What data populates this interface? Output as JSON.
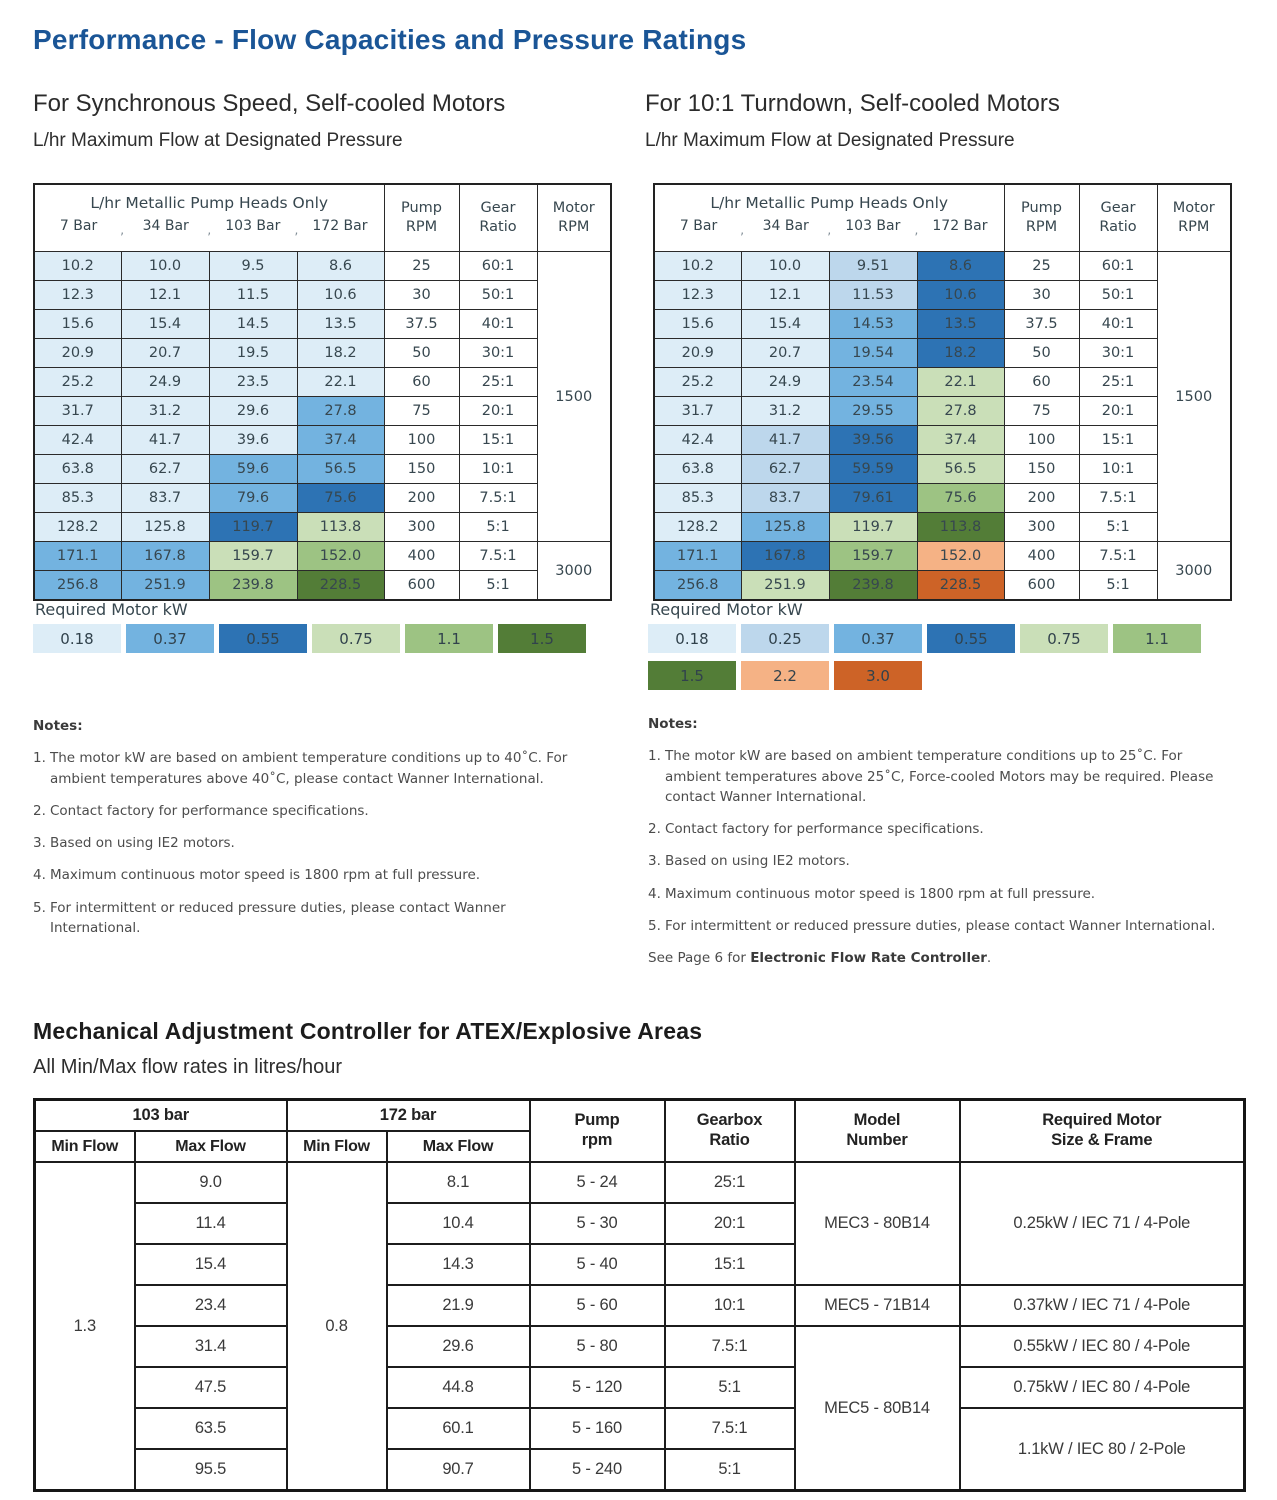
{
  "page": {
    "title": "Performance - Flow Capacities and Pressure Ratings"
  },
  "colors": {
    "title_blue": "#1a5596",
    "kw_018": "#ddedf7",
    "kw_025": "#bdd7ec",
    "kw_037": "#73b3e0",
    "kw_055": "#2d73b4",
    "kw_075": "#cadfb8",
    "kw_110": "#9dc383",
    "kw_150": "#537d37",
    "kw_220": "#f5b285",
    "kw_300": "#cd6327"
  },
  "sync_section": {
    "heading": "For Synchronous Speed, Self-cooled Motors",
    "subheading": "L/hr Maximum Flow at Designated Pressure",
    "table": {
      "group_header": "L/hr Metallic Pump Heads Only",
      "bar_labels": [
        "7 Bar",
        "34 Bar",
        "103 Bar",
        "172 Bar"
      ],
      "pump_header": [
        "Pump",
        "RPM"
      ],
      "gear_header": [
        "Gear",
        "Ratio"
      ],
      "motor_header": [
        "Motor",
        "RPM"
      ],
      "motor_rpm": [
        [
          "1500",
          10
        ],
        [
          "3000",
          2
        ]
      ],
      "rows": [
        {
          "flows": [
            [
              "10.2",
              "018"
            ],
            [
              "10.0",
              "018"
            ],
            [
              "9.5",
              "018"
            ],
            [
              "8.6",
              "018"
            ]
          ],
          "rpm": "25",
          "ratio": "60:1"
        },
        {
          "flows": [
            [
              "12.3",
              "018"
            ],
            [
              "12.1",
              "018"
            ],
            [
              "11.5",
              "018"
            ],
            [
              "10.6",
              "018"
            ]
          ],
          "rpm": "30",
          "ratio": "50:1"
        },
        {
          "flows": [
            [
              "15.6",
              "018"
            ],
            [
              "15.4",
              "018"
            ],
            [
              "14.5",
              "018"
            ],
            [
              "13.5",
              "018"
            ]
          ],
          "rpm": "37.5",
          "ratio": "40:1"
        },
        {
          "flows": [
            [
              "20.9",
              "018"
            ],
            [
              "20.7",
              "018"
            ],
            [
              "19.5",
              "018"
            ],
            [
              "18.2",
              "018"
            ]
          ],
          "rpm": "50",
          "ratio": "30:1"
        },
        {
          "flows": [
            [
              "25.2",
              "018"
            ],
            [
              "24.9",
              "018"
            ],
            [
              "23.5",
              "018"
            ],
            [
              "22.1",
              "018"
            ]
          ],
          "rpm": "60",
          "ratio": "25:1"
        },
        {
          "flows": [
            [
              "31.7",
              "018"
            ],
            [
              "31.2",
              "018"
            ],
            [
              "29.6",
              "018"
            ],
            [
              "27.8",
              "037"
            ]
          ],
          "rpm": "75",
          "ratio": "20:1"
        },
        {
          "flows": [
            [
              "42.4",
              "018"
            ],
            [
              "41.7",
              "018"
            ],
            [
              "39.6",
              "018"
            ],
            [
              "37.4",
              "037"
            ]
          ],
          "rpm": "100",
          "ratio": "15:1"
        },
        {
          "flows": [
            [
              "63.8",
              "018"
            ],
            [
              "62.7",
              "018"
            ],
            [
              "59.6",
              "037"
            ],
            [
              "56.5",
              "037"
            ]
          ],
          "rpm": "150",
          "ratio": "10:1"
        },
        {
          "flows": [
            [
              "85.3",
              "018"
            ],
            [
              "83.7",
              "018"
            ],
            [
              "79.6",
              "037"
            ],
            [
              "75.6",
              "055"
            ]
          ],
          "rpm": "200",
          "ratio": "7.5:1"
        },
        {
          "flows": [
            [
              "128.2",
              "018"
            ],
            [
              "125.8",
              "018"
            ],
            [
              "119.7",
              "055"
            ],
            [
              "113.8",
              "075"
            ]
          ],
          "rpm": "300",
          "ratio": "5:1"
        },
        {
          "flows": [
            [
              "171.1",
              "037"
            ],
            [
              "167.8",
              "037"
            ],
            [
              "159.7",
              "075"
            ],
            [
              "152.0",
              "110"
            ]
          ],
          "rpm": "400",
          "ratio": "7.5:1"
        },
        {
          "flows": [
            [
              "256.8",
              "037"
            ],
            [
              "251.9",
              "037"
            ],
            [
              "239.8",
              "110"
            ],
            [
              "228.5",
              "150"
            ]
          ],
          "rpm": "600",
          "ratio": "5:1"
        }
      ]
    },
    "legend": {
      "title": "Required Motor kW",
      "items": [
        [
          "0.18",
          "018"
        ],
        [
          "0.37",
          "037"
        ],
        [
          "0.55",
          "055"
        ],
        [
          "0.75",
          "075"
        ],
        [
          "1.1",
          "110"
        ],
        [
          "1.5",
          "150"
        ]
      ]
    },
    "notes": {
      "title": "Notes:",
      "items": [
        "The motor kW are based on ambient temperature conditions up to 40˚C. For ambient temperatures above 40˚C, please contact Wanner International.",
        "Contact factory for performance specifications.",
        "Based on using IE2 motors.",
        "Maximum continuous motor speed is 1800 rpm at full pressure.",
        "For intermittent or reduced pressure duties, please contact Wanner International."
      ]
    }
  },
  "turndown_section": {
    "heading": "For 10:1 Turndown, Self-cooled Motors",
    "subheading": "L/hr Maximum Flow at Designated Pressure",
    "table": {
      "group_header": "L/hr Metallic Pump Heads Only",
      "bar_labels": [
        "7 Bar",
        "34 Bar",
        "103 Bar",
        "172 Bar"
      ],
      "pump_header": [
        "Pump",
        "RPM"
      ],
      "gear_header": [
        "Gear",
        "Ratio"
      ],
      "motor_header": [
        "Motor",
        "RPM"
      ],
      "motor_rpm": [
        [
          "1500",
          10
        ],
        [
          "3000",
          2
        ]
      ],
      "rows": [
        {
          "flows": [
            [
              "10.2",
              "018"
            ],
            [
              "10.0",
              "018"
            ],
            [
              "9.51",
              "025"
            ],
            [
              "8.6",
              "055"
            ]
          ],
          "rpm": "25",
          "ratio": "60:1"
        },
        {
          "flows": [
            [
              "12.3",
              "018"
            ],
            [
              "12.1",
              "018"
            ],
            [
              "11.53",
              "025"
            ],
            [
              "10.6",
              "055"
            ]
          ],
          "rpm": "30",
          "ratio": "50:1"
        },
        {
          "flows": [
            [
              "15.6",
              "018"
            ],
            [
              "15.4",
              "018"
            ],
            [
              "14.53",
              "037"
            ],
            [
              "13.5",
              "055"
            ]
          ],
          "rpm": "37.5",
          "ratio": "40:1"
        },
        {
          "flows": [
            [
              "20.9",
              "018"
            ],
            [
              "20.7",
              "018"
            ],
            [
              "19.54",
              "037"
            ],
            [
              "18.2",
              "055"
            ]
          ],
          "rpm": "50",
          "ratio": "30:1"
        },
        {
          "flows": [
            [
              "25.2",
              "018"
            ],
            [
              "24.9",
              "018"
            ],
            [
              "23.54",
              "037"
            ],
            [
              "22.1",
              "075"
            ]
          ],
          "rpm": "60",
          "ratio": "25:1"
        },
        {
          "flows": [
            [
              "31.7",
              "018"
            ],
            [
              "31.2",
              "018"
            ],
            [
              "29.55",
              "037"
            ],
            [
              "27.8",
              "075"
            ]
          ],
          "rpm": "75",
          "ratio": "20:1"
        },
        {
          "flows": [
            [
              "42.4",
              "018"
            ],
            [
              "41.7",
              "025"
            ],
            [
              "39.56",
              "055"
            ],
            [
              "37.4",
              "075"
            ]
          ],
          "rpm": "100",
          "ratio": "15:1"
        },
        {
          "flows": [
            [
              "63.8",
              "018"
            ],
            [
              "62.7",
              "025"
            ],
            [
              "59.59",
              "055"
            ],
            [
              "56.5",
              "075"
            ]
          ],
          "rpm": "150",
          "ratio": "10:1"
        },
        {
          "flows": [
            [
              "85.3",
              "018"
            ],
            [
              "83.7",
              "025"
            ],
            [
              "79.61",
              "055"
            ],
            [
              "75.6",
              "110"
            ]
          ],
          "rpm": "200",
          "ratio": "7.5:1"
        },
        {
          "flows": [
            [
              "128.2",
              "018"
            ],
            [
              "125.8",
              "037"
            ],
            [
              "119.7",
              "075"
            ],
            [
              "113.8",
              "150"
            ]
          ],
          "rpm": "300",
          "ratio": "5:1"
        },
        {
          "flows": [
            [
              "171.1",
              "037"
            ],
            [
              "167.8",
              "055"
            ],
            [
              "159.7",
              "110"
            ],
            [
              "152.0",
              "220"
            ]
          ],
          "rpm": "400",
          "ratio": "7.5:1"
        },
        {
          "flows": [
            [
              "256.8",
              "037"
            ],
            [
              "251.9",
              "075"
            ],
            [
              "239.8",
              "150"
            ],
            [
              "228.5",
              "300"
            ]
          ],
          "rpm": "600",
          "ratio": "5:1"
        }
      ]
    },
    "legend": {
      "title": "Required Motor kW",
      "items": [
        [
          "0.18",
          "018"
        ],
        [
          "0.25",
          "025"
        ],
        [
          "0.37",
          "037"
        ],
        [
          "0.55",
          "055"
        ],
        [
          "0.75",
          "075"
        ],
        [
          "1.1",
          "110"
        ],
        [
          "1.5",
          "150"
        ],
        [
          "2.2",
          "220"
        ],
        [
          "3.0",
          "300"
        ]
      ]
    },
    "notes": {
      "title": "Notes:",
      "items": [
        "The motor kW are based on ambient temperature conditions up to 25˚C. For ambient temperatures above 25˚C, Force-cooled Motors may be required. Please contact Wanner International.",
        "Contact factory for performance specifications.",
        "Based on using IE2 motors.",
        "Maximum continuous motor speed is 1800 rpm at full pressure.",
        "For intermittent or reduced pressure duties, please contact Wanner International."
      ],
      "see_prefix": "See Page 6 for ",
      "see_bold": "Electronic Flow Rate Controller",
      "see_suffix": "."
    }
  },
  "mec_section": {
    "heading": "Mechanical Adjustment Controller for ATEX/Explosive Areas",
    "subheading": "All Min/Max flow rates in litres/hour",
    "table": {
      "headers": {
        "bar103": "103 bar",
        "bar172": "172 bar",
        "min_flow": "Min Flow",
        "max_flow": "Max Flow",
        "pump": [
          "Pump",
          "rpm"
        ],
        "gearbox": [
          "Gearbox",
          "Ratio"
        ],
        "model": [
          "Model",
          "Number"
        ],
        "motor": [
          "Required Motor",
          "Size & Frame"
        ]
      },
      "min103": "1.3",
      "min172": "0.8",
      "rows": [
        {
          "max103": "9.0",
          "max172": "8.1",
          "rpm": "5 - 24",
          "ratio": "25:1"
        },
        {
          "max103": "11.4",
          "max172": "10.4",
          "rpm": "5 - 30",
          "ratio": "20:1"
        },
        {
          "max103": "15.4",
          "max172": "14.3",
          "rpm": "5 - 40",
          "ratio": "15:1"
        },
        {
          "max103": "23.4",
          "max172": "21.9",
          "rpm": "5 - 60",
          "ratio": "10:1"
        },
        {
          "max103": "31.4",
          "max172": "29.6",
          "rpm": "5 - 80",
          "ratio": "7.5:1"
        },
        {
          "max103": "47.5",
          "max172": "44.8",
          "rpm": "5 - 120",
          "ratio": "5:1"
        },
        {
          "max103": "63.5",
          "max172": "60.1",
          "rpm": "5 - 160",
          "ratio": "7.5:1"
        },
        {
          "max103": "95.5",
          "max172": "90.7",
          "rpm": "5 - 240",
          "ratio": "5:1"
        }
      ],
      "models": [
        [
          "MEC3 - 80B14",
          3
        ],
        [
          "MEC5 - 71B14",
          1
        ],
        [
          "MEC5 - 80B14",
          4
        ]
      ],
      "motors": [
        [
          "0.25kW / IEC 71 / 4-Pole",
          3
        ],
        [
          "0.37kW / IEC 71 / 4-Pole",
          1
        ],
        [
          "0.55kW / IEC 80 / 4-Pole",
          1
        ],
        [
          "0.75kW / IEC 80 / 4-Pole",
          1
        ],
        [
          "1.1kW / IEC 80 / 2-Pole",
          2
        ]
      ]
    }
  }
}
